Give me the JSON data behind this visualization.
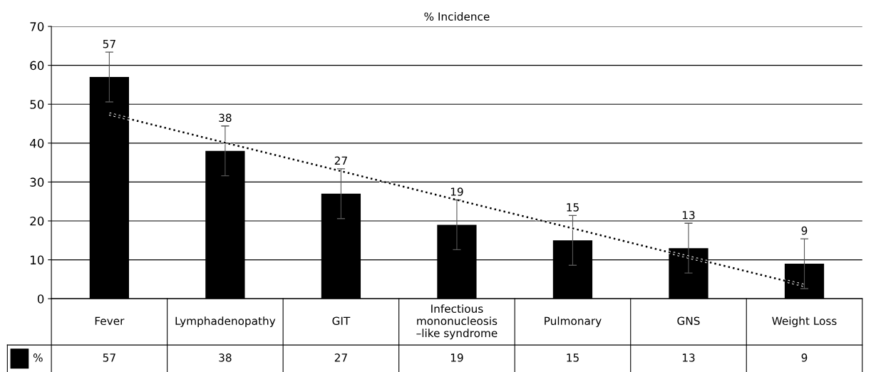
{
  "chart_data": {
    "type": "bar",
    "title": "% Incidence",
    "categories": [
      "Fever",
      "Lymphadenopathy",
      "GIT",
      "Infectious mononucleosis –like syndrome",
      "Pulmonary",
      "GNS",
      "Weight Loss"
    ],
    "series": [
      {
        "name": "%",
        "color": "#000000",
        "values": [
          57,
          38,
          27,
          19,
          15,
          13,
          9
        ],
        "errors": [
          6.4,
          6.4,
          6.4,
          6.4,
          6.4,
          6.4,
          6.4
        ],
        "value_labels": [
          "57",
          "38",
          "27",
          "19",
          "15",
          "13",
          "9"
        ]
      },
      {
        "type": "line",
        "color": "#000000",
        "line_style": "dotted",
        "values": [
          47.5,
          40.1,
          32.8,
          25.4,
          18.1,
          10.7,
          3.4
        ]
      }
    ],
    "ylim": [
      0,
      70
    ],
    "yticks": [
      0,
      10,
      20,
      30,
      40,
      50,
      60,
      70
    ],
    "grid": "y",
    "legend": "bottom"
  }
}
